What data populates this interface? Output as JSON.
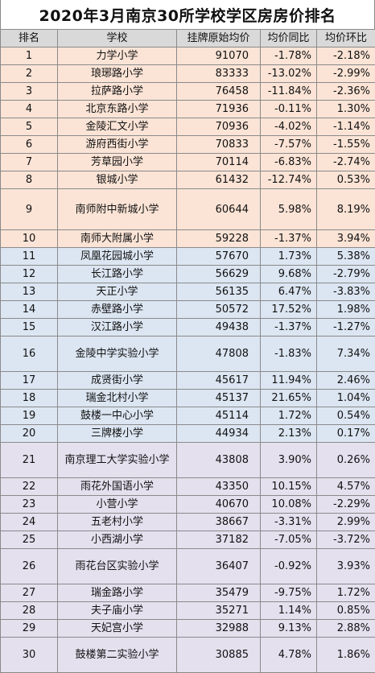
{
  "title": "2020年3月南京30所学校学区房房价排名",
  "headers": [
    "排名",
    "学校",
    "挂牌原始均价",
    "均价同比",
    "均价环比"
  ],
  "rows": [
    {
      "rank": "1",
      "school": "力学小学",
      "price": "91070",
      "yoy": "-1.78%",
      "mom": "-2.18%"
    },
    {
      "rank": "2",
      "school": "琅琊路小学",
      "price": "83333",
      "yoy": "-13.02%",
      "mom": "-2.99%"
    },
    {
      "rank": "3",
      "school": "拉萨路小学",
      "price": "76458",
      "yoy": "-11.84%",
      "mom": "-2.36%"
    },
    {
      "rank": "4",
      "school": "北京东路小学",
      "price": "71936",
      "yoy": "-0.11%",
      "mom": "1.30%"
    },
    {
      "rank": "5",
      "school": "金陵汇文小学",
      "price": "70936",
      "yoy": "-4.02%",
      "mom": "-1.14%"
    },
    {
      "rank": "6",
      "school": "游府西街小学",
      "price": "70833",
      "yoy": "-7.57%",
      "mom": "-1.55%"
    },
    {
      "rank": "7",
      "school": "芳草园小学",
      "price": "70114",
      "yoy": "-6.83%",
      "mom": "-2.74%"
    },
    {
      "rank": "8",
      "school": "银城小学",
      "price": "61432",
      "yoy": "-12.74%",
      "mom": "0.53%"
    },
    {
      "rank": "9",
      "school": "南师附中新城小学",
      "price": "60644",
      "yoy": "5.98%",
      "mom": "8.19%"
    },
    {
      "rank": "10",
      "school": "南师大附属小学",
      "price": "59228",
      "yoy": "-1.37%",
      "mom": "3.94%"
    },
    {
      "rank": "11",
      "school": "凤凰花园城小学",
      "price": "57670",
      "yoy": "1.73%",
      "mom": "5.38%"
    },
    {
      "rank": "12",
      "school": "长江路小学",
      "price": "56629",
      "yoy": "9.68%",
      "mom": "-2.79%"
    },
    {
      "rank": "13",
      "school": "天正小学",
      "price": "56135",
      "yoy": "6.47%",
      "mom": "-3.83%"
    },
    {
      "rank": "14",
      "school": "赤壁路小学",
      "price": "50572",
      "yoy": "17.52%",
      "mom": "1.98%"
    },
    {
      "rank": "15",
      "school": "汉江路小学",
      "price": "49438",
      "yoy": "-1.37%",
      "mom": "-1.27%"
    },
    {
      "rank": "16",
      "school": "金陵中学实验小学",
      "price": "47808",
      "yoy": "-1.83%",
      "mom": "7.34%"
    },
    {
      "rank": "17",
      "school": "成贤街小学",
      "price": "45617",
      "yoy": "11.94%",
      "mom": "2.46%"
    },
    {
      "rank": "18",
      "school": "瑞金北村小学",
      "price": "45137",
      "yoy": "21.65%",
      "mom": "1.04%"
    },
    {
      "rank": "19",
      "school": "鼓楼一中心小学",
      "price": "45114",
      "yoy": "1.72%",
      "mom": "0.54%"
    },
    {
      "rank": "20",
      "school": "三牌楼小学",
      "price": "44934",
      "yoy": "2.13%",
      "mom": "0.17%"
    },
    {
      "rank": "21",
      "school": "南京理工大学实验小学",
      "price": "43808",
      "yoy": "3.90%",
      "mom": "0.26%"
    },
    {
      "rank": "22",
      "school": "雨花外国语小学",
      "price": "43350",
      "yoy": "10.15%",
      "mom": "4.57%"
    },
    {
      "rank": "23",
      "school": "小营小学",
      "price": "40670",
      "yoy": "10.08%",
      "mom": "-2.29%"
    },
    {
      "rank": "24",
      "school": "五老村小学",
      "price": "38667",
      "yoy": "-3.31%",
      "mom": "2.99%"
    },
    {
      "rank": "25",
      "school": "小西湖小学",
      "price": "37182",
      "yoy": "-7.05%",
      "mom": "-3.72%"
    },
    {
      "rank": "26",
      "school": "雨花台区实验小学",
      "price": "36407",
      "yoy": "-0.92%",
      "mom": "3.93%"
    },
    {
      "rank": "27",
      "school": "瑞金路小学",
      "price": "35479",
      "yoy": "-9.75%",
      "mom": "1.72%"
    },
    {
      "rank": "28",
      "school": "夫子庙小学",
      "price": "35271",
      "yoy": "1.14%",
      "mom": "0.85%"
    },
    {
      "rank": "29",
      "school": "天妃宫小学",
      "price": "32988",
      "yoy": "9.13%",
      "mom": "2.88%"
    },
    {
      "rank": "30",
      "school": "鼓楼第二实验小学",
      "price": "30885",
      "yoy": "4.78%",
      "mom": "1.86%"
    }
  ]
}
